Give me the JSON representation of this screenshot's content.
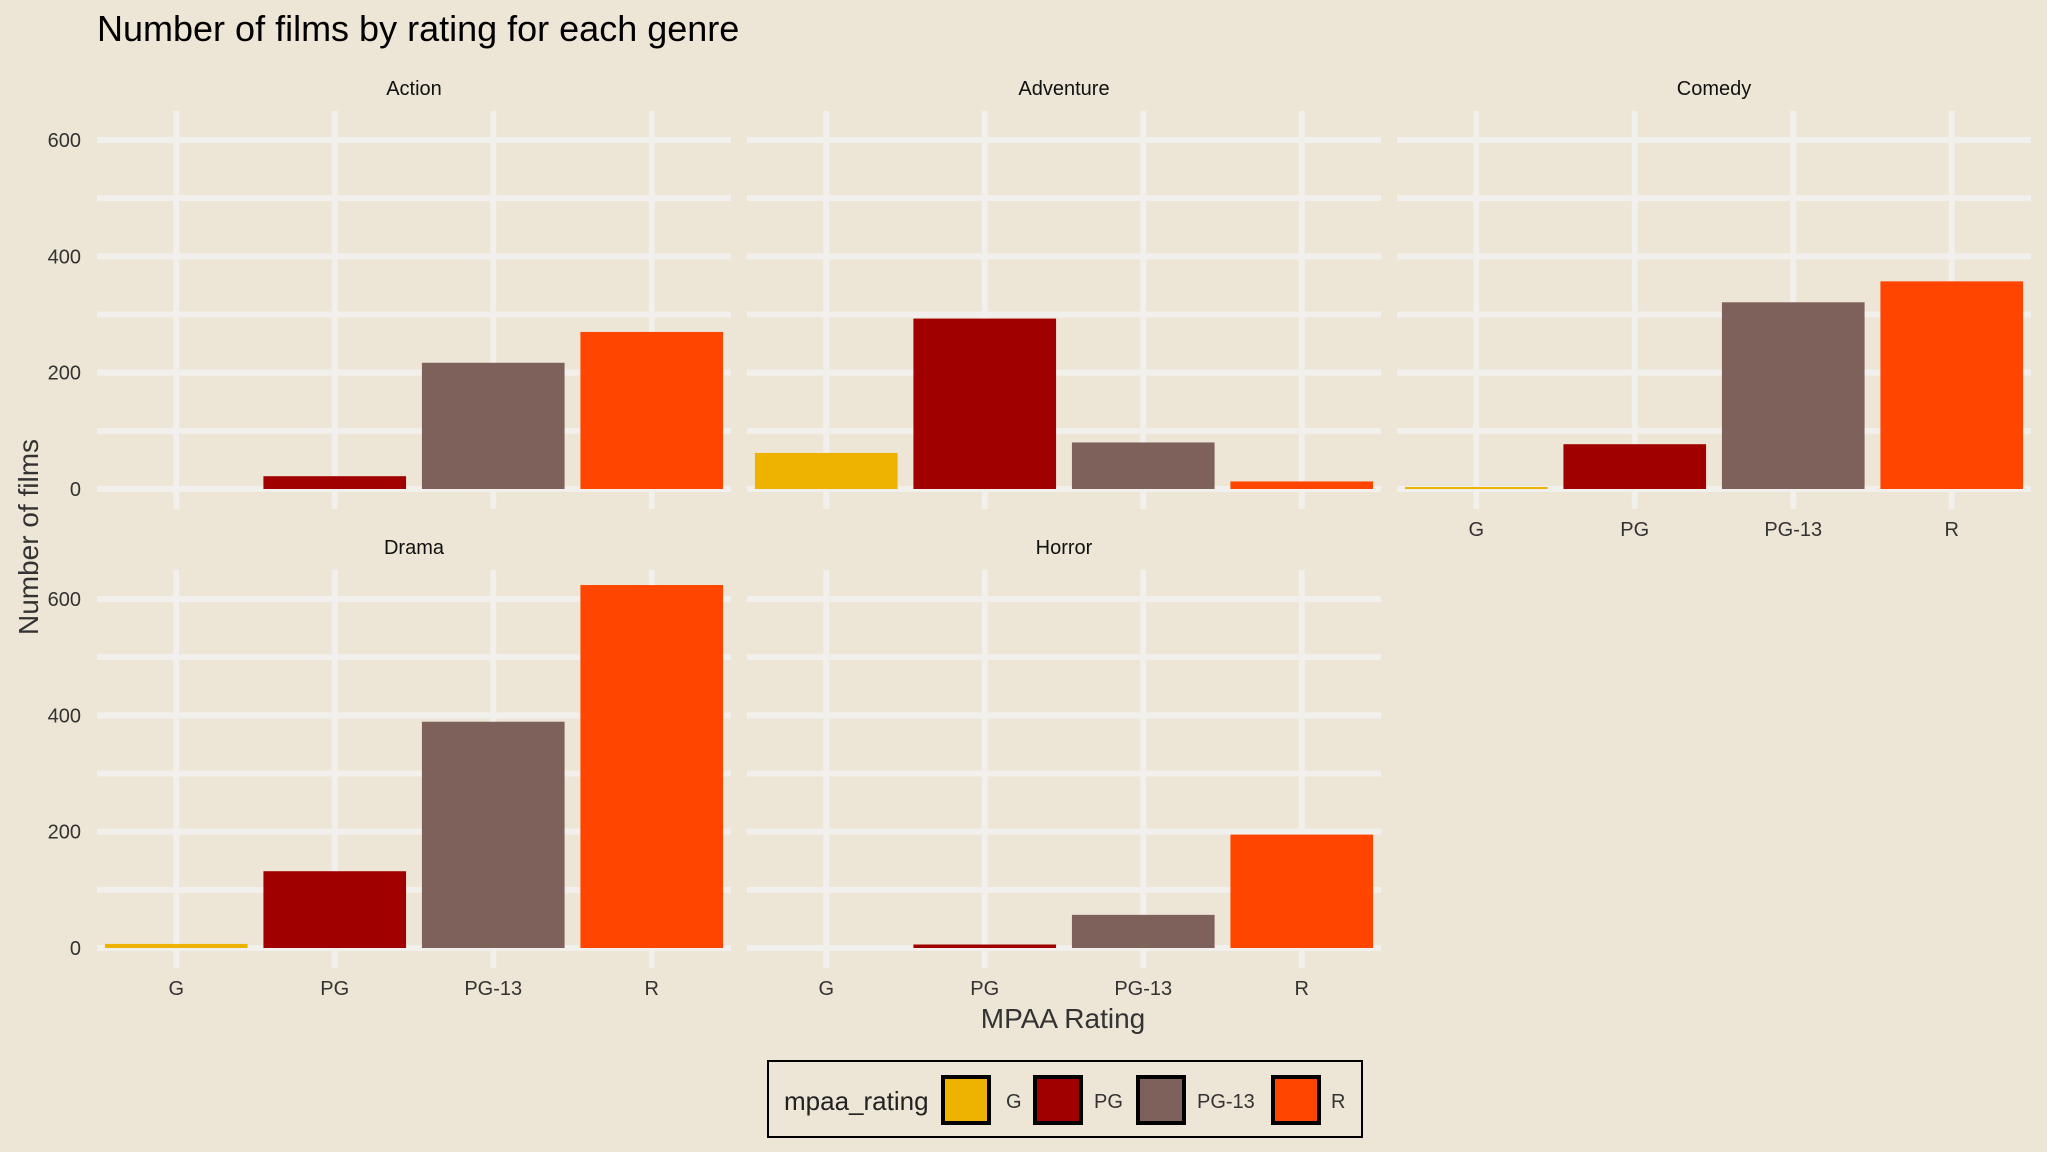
{
  "chart_data": {
    "type": "bar",
    "title": "Number of films by rating for each genre",
    "xlabel": "MPAA Rating",
    "ylabel": "Number of films",
    "categories": [
      "G",
      "PG",
      "PG-13",
      "R"
    ],
    "ylim": [
      0,
      650
    ],
    "yticks": [
      0,
      200,
      400,
      600
    ],
    "grid": true,
    "colors": {
      "G": "#EEB300",
      "PG": "#A00000",
      "PG-13": "#7F615C",
      "R": "#FF4500"
    },
    "panels": [
      {
        "name": "Action",
        "values": [
          0,
          22,
          217,
          270
        ]
      },
      {
        "name": "Adventure",
        "values": [
          62,
          293,
          80,
          13
        ]
      },
      {
        "name": "Comedy",
        "values": [
          2,
          77,
          321,
          357
        ]
      },
      {
        "name": "Drama",
        "values": [
          7,
          132,
          389,
          624
        ]
      },
      {
        "name": "Horror",
        "values": [
          0,
          6,
          57,
          195
        ]
      }
    ],
    "legend": {
      "title": "mpaa_rating",
      "position": "bottom",
      "items": [
        "G",
        "PG",
        "PG-13",
        "R"
      ]
    }
  }
}
